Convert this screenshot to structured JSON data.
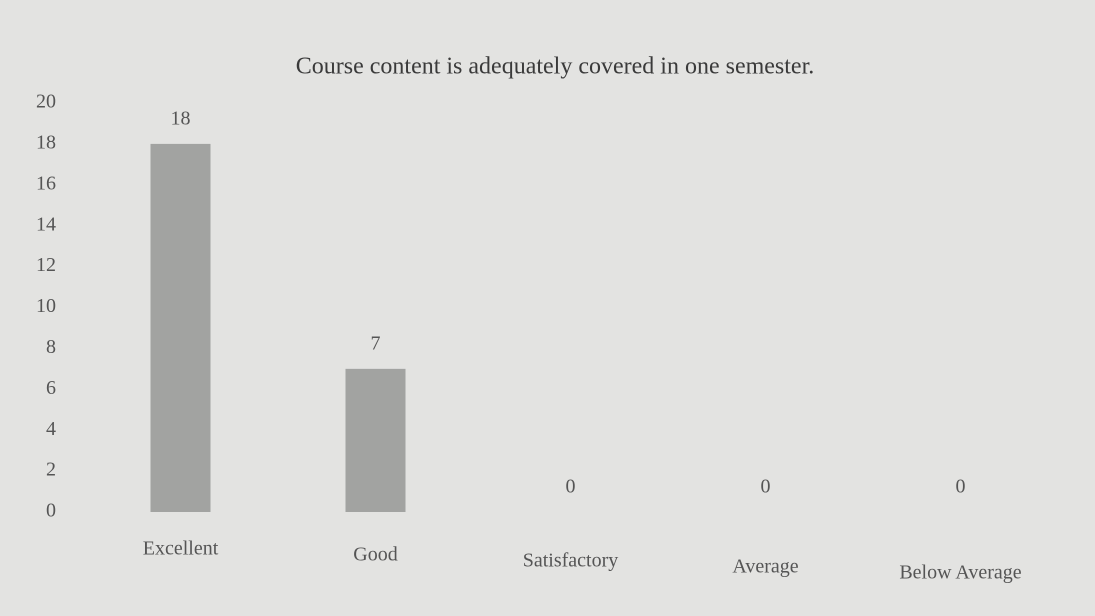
{
  "chart_data": {
    "type": "bar",
    "title": "Course content is adequately covered in one semester.",
    "categories": [
      "Excellent",
      "Good",
      "Satisfactory",
      "Average",
      "Below Average"
    ],
    "values": [
      18,
      7,
      0,
      0,
      0
    ],
    "color": "#a2a3a1",
    "ylim": [
      0,
      20
    ],
    "yticks": [
      0,
      2,
      4,
      6,
      8,
      10,
      12,
      14,
      16,
      18,
      20
    ],
    "grid": false
  }
}
